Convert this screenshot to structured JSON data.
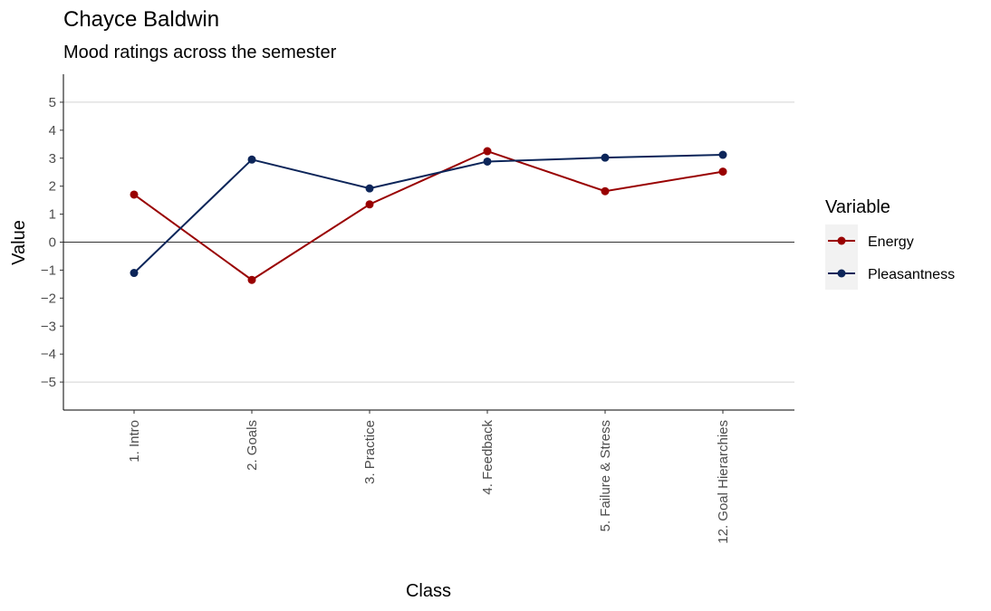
{
  "chart_data": {
    "type": "line",
    "title": "Chayce Baldwin",
    "subtitle": "Mood ratings across the semester",
    "xlabel": "Class",
    "ylabel": "Value",
    "categories": [
      "1. Intro",
      "2. Goals",
      "3. Practice",
      "4. Feedback",
      "5. Failure & Stress",
      "12. Goal Hierarchies"
    ],
    "y_ticks": [
      "5",
      "4",
      "3",
      "2",
      "1",
      "0",
      "−1",
      "−2",
      "−3",
      "−4",
      "−5"
    ],
    "ylim": [
      -6,
      6
    ],
    "grid": "horizontal at ±5",
    "reference_line": 0,
    "legend": {
      "title": "Variable",
      "placement": "right"
    },
    "series": [
      {
        "name": "Energy",
        "color": "#990000",
        "values": [
          1.7,
          -1.35,
          1.35,
          3.25,
          1.82,
          2.52
        ]
      },
      {
        "name": "Pleasantness",
        "color": "#0c2559",
        "values": [
          -1.1,
          2.95,
          1.92,
          2.88,
          3.02,
          3.12
        ]
      }
    ]
  }
}
